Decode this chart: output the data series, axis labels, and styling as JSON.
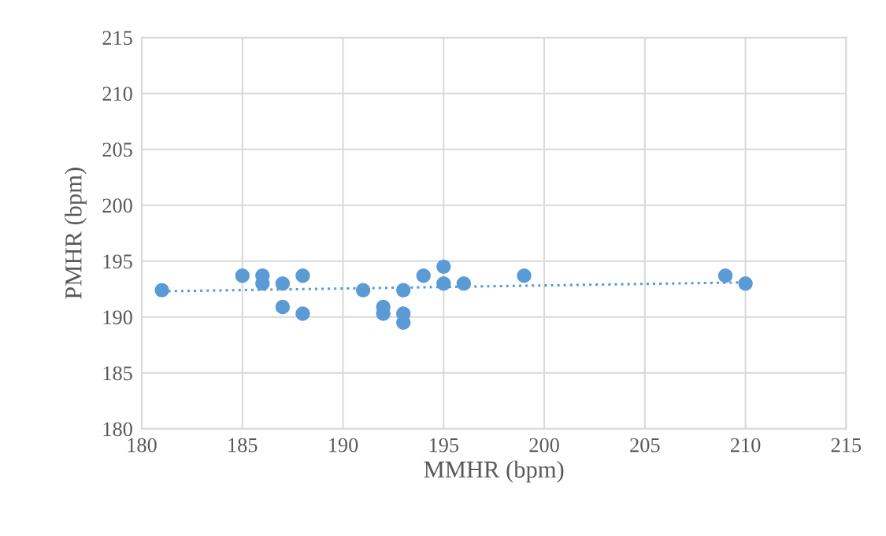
{
  "chart_data": {
    "type": "scatter",
    "xlabel": "MMHR (bpm)",
    "ylabel": "PMHR (bpm)",
    "xlim": [
      180,
      215
    ],
    "xticks": [
      180,
      185,
      190,
      195,
      200,
      205,
      210,
      215
    ],
    "ylim": [
      180,
      215
    ],
    "yticks": [
      180,
      185,
      190,
      195,
      200,
      205,
      210,
      215
    ],
    "grid": true,
    "series": [
      {
        "marker": "circle",
        "color": "#5b9bd5",
        "x": [
          181,
          185,
          186,
          186,
          187,
          187,
          188,
          188,
          191,
          192,
          192,
          193,
          193,
          193,
          194,
          195,
          195,
          196,
          199,
          209,
          210
        ],
        "values": [
          192.4,
          193.7,
          193.7,
          193.0,
          193.0,
          190.9,
          193.7,
          190.3,
          192.4,
          190.9,
          190.3,
          192.4,
          190.3,
          189.5,
          193.7,
          194.5,
          193.0,
          193.0,
          193.7,
          193.7,
          193.0
        ]
      },
      {
        "type": "line",
        "color": "#5b9bd5",
        "line_style": "dotted",
        "x": [
          181,
          210
        ],
        "values": [
          192.3,
          193.1
        ]
      }
    ]
  }
}
